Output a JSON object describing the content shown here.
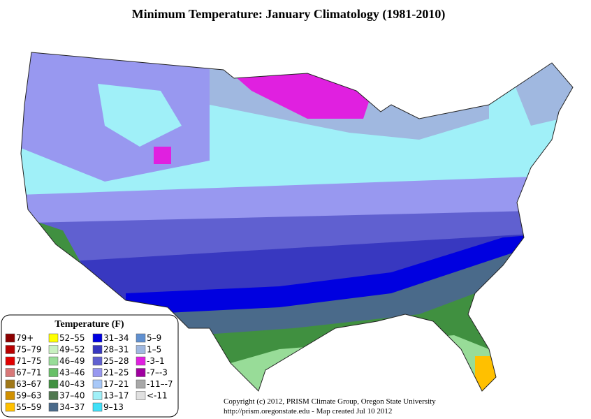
{
  "title": "Minimum Temperature:  January Climatology (1981-2010)",
  "legend": {
    "title": "Temperature (F)",
    "items": [
      {
        "label": "79+",
        "color": "#8b0000"
      },
      {
        "label": "75–79",
        "color": "#b80000"
      },
      {
        "label": "71–75",
        "color": "#e00000"
      },
      {
        "label": "67–71",
        "color": "#d87878"
      },
      {
        "label": "63–67",
        "color": "#a07818"
      },
      {
        "label": "59–63",
        "color": "#d09000"
      },
      {
        "label": "55–59",
        "color": "#ffc000"
      },
      {
        "label": "52–55",
        "color": "#ffff00"
      },
      {
        "label": "49–52",
        "color": "#c8f0c0"
      },
      {
        "label": "46–49",
        "color": "#98dc98"
      },
      {
        "label": "43–46",
        "color": "#68c068"
      },
      {
        "label": "40–43",
        "color": "#409040"
      },
      {
        "label": "37–40",
        "color": "#507850"
      },
      {
        "label": "34–37",
        "color": "#4a6a8a"
      },
      {
        "label": "31–34",
        "color": "#0000e0"
      },
      {
        "label": "28–31",
        "color": "#3838c0"
      },
      {
        "label": "25–28",
        "color": "#6060d0"
      },
      {
        "label": "21–25",
        "color": "#9898f0"
      },
      {
        "label": "17–21",
        "color": "#a8c8f8"
      },
      {
        "label": "13–17",
        "color": "#a0f0f8"
      },
      {
        "label": "9–13",
        "color": "#40e0f8"
      },
      {
        "label": "5–9",
        "color": "#6090d0"
      },
      {
        "label": "1–5",
        "color": "#a0b8e0"
      },
      {
        "label": "-3–1",
        "color": "#e020e0"
      },
      {
        "label": "-7–-3",
        "color": "#a000a0"
      },
      {
        "label": "-11–-7",
        "color": "#a8a8a8"
      },
      {
        "label": "<-11",
        "color": "#e0e0e0"
      }
    ]
  },
  "credits": [
    "Copyright (c) 2012, PRISM Climate Group, Oregon State University",
    "http://prism.oregonstate.edu  -  Map created Jul 10 2012"
  ]
}
